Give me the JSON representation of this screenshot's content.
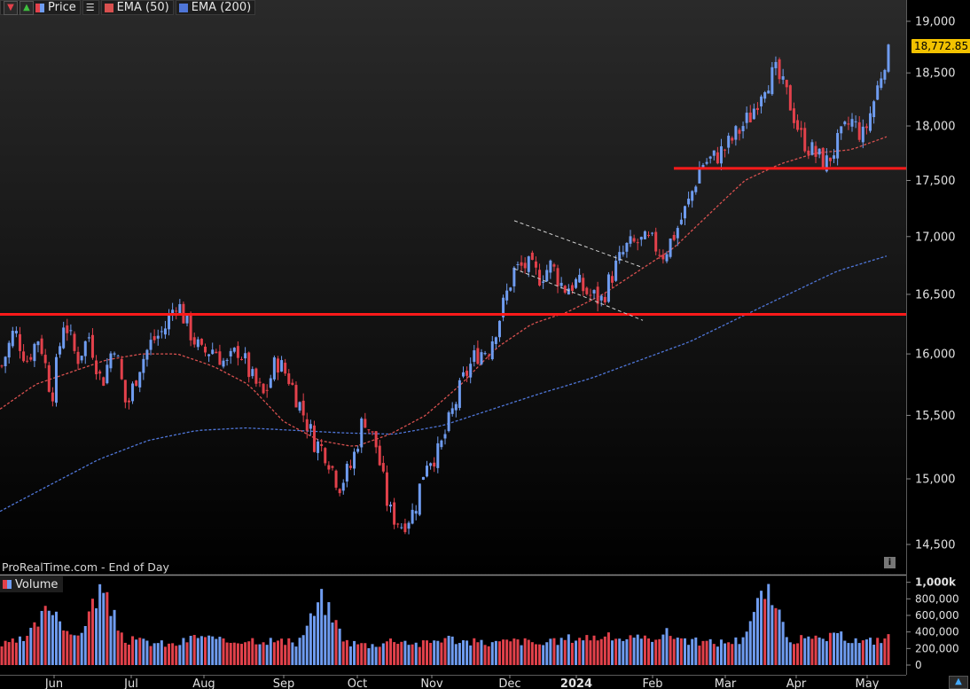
{
  "legend": {
    "price_label": "Price",
    "ema50_label": "EMA (50)",
    "ema200_label": "EMA (200)",
    "volume_label": "Volume"
  },
  "source_label": "ProRealTime.com - End of Day",
  "last_price_label": "18,772.85",
  "colors": {
    "up": "#6f9cf0",
    "down": "#e2414b",
    "ema50": "#d8504f",
    "ema200": "#4f76d8",
    "support_line": "#ff1a1a",
    "channel": "#cfcfcf",
    "background": "#000000"
  },
  "icons": [
    "down-arrow-icon",
    "up-arrow-icon",
    "bar-chart-icon",
    "info-icon",
    "navigate-icon"
  ],
  "chart_data": [
    {
      "type": "candlestick",
      "title": "",
      "x_tick_labels": [
        "Jun",
        "Jul",
        "Aug",
        "Sep",
        "Oct",
        "Nov",
        "Dec",
        "2024",
        "Feb",
        "Mar",
        "Apr",
        "May"
      ],
      "y_tick_labels": [
        "14,500",
        "15,000",
        "15,500",
        "16,000",
        "16,500",
        "17,000",
        "17,500",
        "18,000",
        "18,500",
        "19,000"
      ],
      "y_scale": "log",
      "ylim": [
        14300,
        19150
      ],
      "grid": false,
      "last_price": 18772.85,
      "series": [
        {
          "name": "Price",
          "values_approx_close": [
            15900,
            16200,
            15950,
            16150,
            15650,
            16300,
            15950,
            16150,
            15750,
            16100,
            15550,
            15900,
            16100,
            16200,
            16450,
            16200,
            16000,
            16050,
            15900,
            16050,
            15800,
            15650,
            15950,
            15800,
            15550,
            15300,
            15200,
            14950,
            15100,
            15500,
            15250,
            14750,
            14650,
            14750,
            15150,
            15200,
            15500,
            15800,
            16000,
            16050,
            16350,
            16700,
            16750,
            16650,
            16750,
            16550,
            16600,
            16500,
            16450,
            16700,
            16900,
            16950,
            16950,
            16850,
            17050,
            17300,
            17650,
            17700,
            17800,
            17950,
            18100,
            18400,
            18500,
            18250,
            17900,
            17750,
            17650,
            17850,
            18050,
            17900,
            18300,
            18772.85
          ]
        },
        {
          "name": "EMA (50)",
          "values_approx": [
            15550,
            15750,
            15850,
            15950,
            16000,
            16000,
            15900,
            15750,
            15450,
            15300,
            15250,
            15350,
            15500,
            15750,
            16050,
            16250,
            16350,
            16500,
            16700,
            16900,
            17200,
            17500,
            17650,
            17750,
            17780,
            17900
          ]
        },
        {
          "name": "EMA (200)",
          "values_approx": [
            14750,
            14950,
            15150,
            15300,
            15380,
            15400,
            15380,
            15360,
            15350,
            15420,
            15550,
            15680,
            15800,
            15950,
            16100,
            16300,
            16500,
            16700,
            16830
          ]
        }
      ],
      "support_levels": [
        16330,
        17610
      ],
      "channel_annotation": {
        "from": "Dec",
        "to": "Jan",
        "upper_start": 17140,
        "upper_end": 16730,
        "lower_start": 16720,
        "lower_end": 16280
      }
    },
    {
      "type": "bar",
      "title": "Volume",
      "y_tick_labels": [
        "0",
        "200,000",
        "400,000",
        "600,000",
        "800,000",
        "1,000k"
      ],
      "ylim": [
        0,
        1050000
      ],
      "values_approx": [
        260000,
        340000,
        800000,
        310000,
        1000000,
        330000,
        300000,
        260000,
        390000,
        300000,
        340000,
        320000,
        280000,
        870000,
        300000,
        260000,
        340000,
        270000,
        360000,
        300000,
        290000,
        320000,
        270000,
        350000,
        370000,
        360000,
        330000,
        420000,
        310000,
        290000,
        330000,
        1000000,
        340000,
        330000,
        380000,
        300000,
        360000
      ]
    }
  ]
}
